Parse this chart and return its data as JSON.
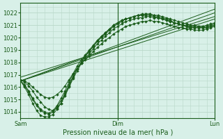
{
  "title": "Pression niveau de la mer( hPa )",
  "bg_color": "#d8f0e8",
  "grid_color": "#b8d8c8",
  "line_color": "#1a5c1a",
  "xlim": [
    0,
    48
  ],
  "ylim": [
    1013.5,
    1022.8
  ],
  "yticks": [
    1014,
    1015,
    1016,
    1017,
    1018,
    1019,
    1020,
    1021,
    1022
  ],
  "xtick_labels": [
    "Sam",
    "Dim",
    "Lun"
  ],
  "xtick_positions": [
    0,
    24,
    48
  ],
  "vlines": [
    24
  ],
  "straight_lines": [
    [
      [
        0,
        48
      ],
      [
        1016.5,
        1022.3
      ]
    ],
    [
      [
        0,
        48
      ],
      [
        1016.5,
        1022.0
      ]
    ],
    [
      [
        0,
        48
      ],
      [
        1016.8,
        1021.7
      ]
    ],
    [
      [
        0,
        48
      ],
      [
        1016.5,
        1021.5
      ]
    ]
  ],
  "curved_series": [
    [
      1016.5,
      1016.1,
      1015.6,
      1015.0,
      1014.5,
      1014.1,
      1013.9,
      1013.8,
      1014.0,
      1014.4,
      1014.9,
      1015.5,
      1016.2,
      1016.9,
      1017.5,
      1018.0,
      1018.5,
      1018.9,
      1019.3,
      1019.7,
      1020.0,
      1020.3,
      1020.6,
      1020.9,
      1021.1,
      1021.3,
      1021.5,
      1021.6,
      1021.7,
      1021.8,
      1021.9,
      1021.9,
      1021.9,
      1021.8,
      1021.8,
      1021.7,
      1021.6,
      1021.5,
      1021.4,
      1021.3,
      1021.2,
      1021.1,
      1021.0,
      1021.0,
      1020.9,
      1020.9,
      1020.9,
      1021.0,
      1021.1
    ],
    [
      1016.5,
      1016.2,
      1015.7,
      1015.1,
      1014.6,
      1014.2,
      1014.0,
      1013.9,
      1014.1,
      1014.5,
      1015.1,
      1015.7,
      1016.4,
      1017.1,
      1017.7,
      1018.2,
      1018.6,
      1019.0,
      1019.4,
      1019.8,
      1020.1,
      1020.4,
      1020.7,
      1021.0,
      1021.2,
      1021.4,
      1021.5,
      1021.6,
      1021.7,
      1021.8,
      1021.8,
      1021.8,
      1021.8,
      1021.7,
      1021.6,
      1021.5,
      1021.4,
      1021.3,
      1021.2,
      1021.1,
      1021.0,
      1021.0,
      1020.9,
      1020.9,
      1020.9,
      1020.9,
      1021.0,
      1021.1,
      1021.2
    ],
    [
      1016.6,
      1016.4,
      1016.1,
      1015.7,
      1015.2,
      1014.8,
      1014.4,
      1014.2,
      1014.1,
      1014.3,
      1014.7,
      1015.3,
      1016.0,
      1016.7,
      1017.3,
      1017.9,
      1018.3,
      1018.7,
      1019.1,
      1019.5,
      1019.8,
      1020.1,
      1020.4,
      1020.7,
      1020.9,
      1021.1,
      1021.3,
      1021.4,
      1021.5,
      1021.6,
      1021.6,
      1021.7,
      1021.7,
      1021.6,
      1021.6,
      1021.5,
      1021.4,
      1021.3,
      1021.2,
      1021.1,
      1021.0,
      1020.9,
      1020.8,
      1020.8,
      1020.8,
      1020.8,
      1020.8,
      1020.9,
      1021.0
    ],
    [
      1016.6,
      1016.5,
      1016.3,
      1016.0,
      1015.7,
      1015.4,
      1015.2,
      1015.1,
      1015.2,
      1015.4,
      1015.7,
      1016.1,
      1016.6,
      1017.1,
      1017.5,
      1017.9,
      1018.2,
      1018.5,
      1018.9,
      1019.2,
      1019.5,
      1019.8,
      1020.0,
      1020.3,
      1020.5,
      1020.7,
      1020.9,
      1021.0,
      1021.1,
      1021.2,
      1021.3,
      1021.3,
      1021.4,
      1021.3,
      1021.3,
      1021.2,
      1021.1,
      1021.0,
      1020.9,
      1020.8,
      1020.8,
      1020.7,
      1020.7,
      1020.6,
      1020.6,
      1020.6,
      1020.7,
      1020.8,
      1020.9
    ],
    [
      1016.5,
      1016.0,
      1015.4,
      1014.7,
      1014.1,
      1013.7,
      1013.6,
      1013.6,
      1013.8,
      1014.2,
      1014.7,
      1015.4,
      1016.1,
      1016.8,
      1017.5,
      1018.0,
      1018.5,
      1018.9,
      1019.3,
      1019.7,
      1020.1,
      1020.4,
      1020.7,
      1021.0,
      1021.2,
      1021.4,
      1021.5,
      1021.6,
      1021.7,
      1021.8,
      1021.8,
      1021.9,
      1021.9,
      1021.8,
      1021.7,
      1021.6,
      1021.5,
      1021.4,
      1021.2,
      1021.1,
      1021.0,
      1020.9,
      1020.8,
      1020.8,
      1020.8,
      1020.8,
      1020.8,
      1020.9,
      1021.0
    ]
  ]
}
